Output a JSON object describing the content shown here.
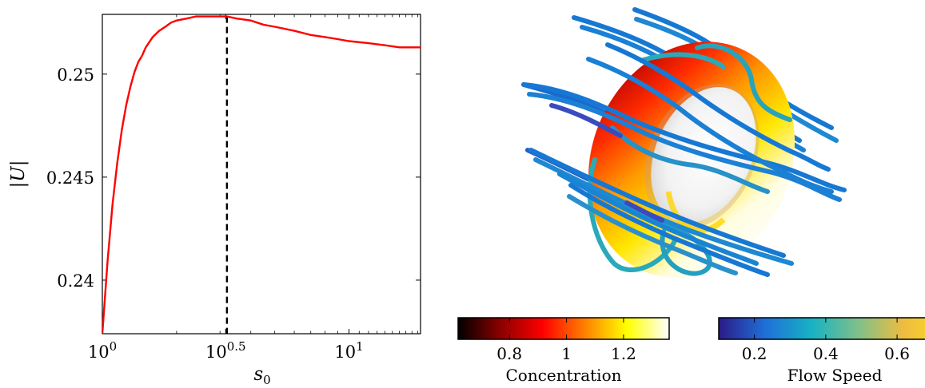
{
  "chart_data": [
    {
      "type": "line",
      "title": "",
      "xlabel": "s_0",
      "ylabel": "|U|",
      "xscale": "log",
      "xlim": [
        1.0,
        19.5
      ],
      "ylim": [
        0.2374,
        0.2529
      ],
      "xtick_labels": [
        {
          "value": 1.0,
          "base": "10",
          "exp": "0"
        },
        {
          "value": 3.1623,
          "base": "10",
          "exp": "0.5"
        },
        {
          "value": 10.0,
          "base": "10",
          "exp": "1"
        }
      ],
      "ytick_labels": [
        {
          "value": 0.24,
          "label": "0.24"
        },
        {
          "value": 0.245,
          "label": "0.245"
        },
        {
          "value": 0.25,
          "label": "0.25"
        }
      ],
      "series": [
        {
          "color": "#ff0000",
          "x": [
            1.0,
            1.05,
            1.1,
            1.15,
            1.2,
            1.25,
            1.3,
            1.35,
            1.4,
            1.45,
            1.5,
            1.6,
            1.7,
            1.8,
            1.9,
            2.0,
            2.2,
            2.4,
            2.6,
            2.8,
            3.0,
            3.2,
            3.5,
            4.0,
            4.5,
            5.0,
            6.0,
            7.0,
            8.0,
            9.0,
            10.0,
            12.0,
            14.0,
            16.0,
            18.0,
            19.5
          ],
          "y": [
            0.2374,
            0.2409,
            0.2437,
            0.2457,
            0.2473,
            0.2485,
            0.2494,
            0.2501,
            0.2506,
            0.2509,
            0.2513,
            0.2518,
            0.2521,
            0.2523,
            0.2525,
            0.2526,
            0.2527,
            0.2528,
            0.2528,
            0.2528,
            0.2528,
            0.2528,
            0.2527,
            0.2526,
            0.2524,
            0.2523,
            0.2521,
            0.2519,
            0.2518,
            0.2517,
            0.2516,
            0.2515,
            0.2514,
            0.2513,
            0.2513,
            0.2513
          ]
        }
      ],
      "annotations": [
        {
          "type": "vertical-dashed-line",
          "x": 3.2,
          "color": "#000000"
        }
      ],
      "grid": false
    }
  ],
  "colorbars": [
    {
      "label": "Concentration",
      "range": [
        0.62,
        1.36
      ],
      "ticks": [
        {
          "value": 0.8,
          "label": "0.8"
        },
        {
          "value": 1.0,
          "label": "1"
        },
        {
          "value": 1.2,
          "label": "1.2"
        }
      ],
      "colormap": [
        "#000000",
        "#8b0000",
        "#ff0000",
        "#ff8000",
        "#ffff00",
        "#ffffff"
      ]
    },
    {
      "label": "Flow Speed",
      "range": [
        0.1,
        0.75
      ],
      "ticks": [
        {
          "value": 0.2,
          "label": "0.2"
        },
        {
          "value": 0.4,
          "label": "0.4"
        },
        {
          "value": 0.6,
          "label": "0.6"
        }
      ],
      "colormap": [
        "#2b1b87",
        "#1f6fd8",
        "#17b2c4",
        "#7ec08a",
        "#f0bc40",
        "#f8e21c"
      ]
    }
  ],
  "scene_colors": {
    "torus": [
      "#b00000",
      "#ff2a00",
      "#ff9a00",
      "#ffe600",
      "#fffde0",
      "#ffffff"
    ],
    "streamline_main": "#1778d4",
    "streamline_ring": "#2aa9b8",
    "streamline_dark": "#3a4bc0"
  }
}
